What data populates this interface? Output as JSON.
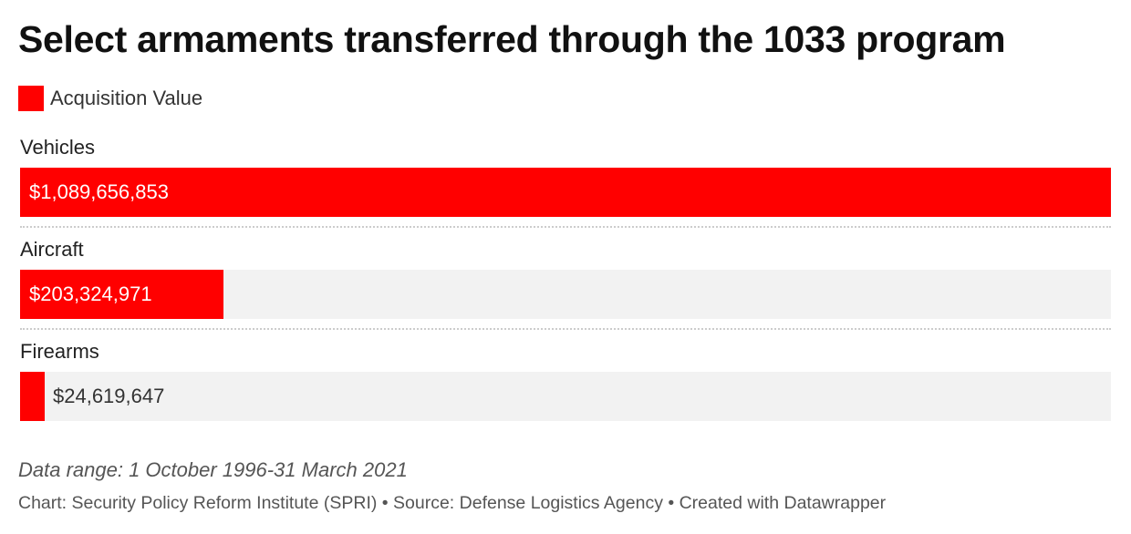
{
  "title": "Select armaments transferred through the 1033 program",
  "legend": {
    "label": "Acquisition Value",
    "color": "#ff0000"
  },
  "notes": "Data range: 1 October 1996-31 March 2021",
  "footer": "Chart: Security Policy Reform Institute (SPRI) • Source: Defense Logistics Agency • Created with Datawrapper",
  "colors": {
    "bar": "#ff0000",
    "track": "#f2f2f2"
  },
  "chart_data": {
    "type": "bar",
    "orientation": "horizontal",
    "categories": [
      "Vehicles",
      "Aircraft",
      "Firearms"
    ],
    "series": [
      {
        "name": "Acquisition Value",
        "values": [
          1089656853,
          203324971,
          24619647
        ],
        "labels": [
          "$1,089,656,853",
          "$203,324,971",
          "$24,619,647"
        ]
      }
    ],
    "xlim": [
      0,
      1089656853
    ],
    "title": "Select armaments transferred through the 1033 program",
    "legend_position": "top-left",
    "grid": false
  }
}
